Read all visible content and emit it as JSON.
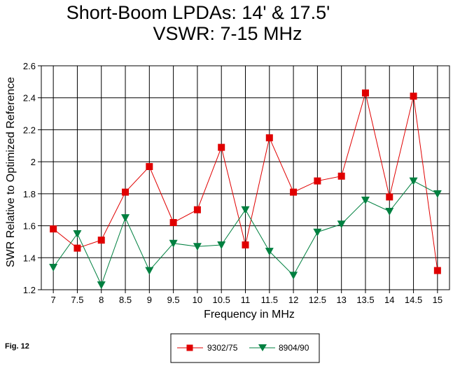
{
  "chart_data": {
    "type": "line",
    "title_line1": "Short-Boom LPDAs:  14' & 17.5'",
    "title_line2": "VSWR:  7-15 MHz",
    "xlabel": "Frequency in MHz",
    "ylabel": "SWR Relative to Optimized Reference",
    "x": [
      7,
      7.5,
      8,
      8.5,
      9,
      9.5,
      10,
      10.5,
      11,
      11.5,
      12,
      12.5,
      13,
      13.5,
      14,
      14.5,
      15
    ],
    "x_tick_labels": [
      "7",
      "7.5",
      "8",
      "8.5",
      "9",
      "9.5",
      "10",
      "10.5",
      "11",
      "11.5",
      "12",
      "12.5",
      "13",
      "13.5",
      "14",
      "14.5",
      "15"
    ],
    "ylim": [
      1.2,
      2.6
    ],
    "y_ticks": [
      1.2,
      1.4,
      1.6,
      1.8,
      2.0,
      2.2,
      2.4,
      2.6
    ],
    "y_tick_labels": [
      "1.2",
      "1.4",
      "1.6",
      "1.8",
      "2",
      "2.2",
      "2.4",
      "2.6"
    ],
    "grid": true,
    "legend_position": "bottom-center",
    "series": [
      {
        "name": "9302/75",
        "color": "#e00000",
        "marker": "square",
        "values": [
          1.58,
          1.46,
          1.51,
          1.81,
          1.97,
          1.62,
          1.7,
          2.09,
          1.48,
          2.15,
          1.81,
          1.88,
          1.91,
          2.43,
          1.78,
          2.41,
          1.32
        ]
      },
      {
        "name": "8904/90",
        "color": "#008040",
        "marker": "triangle-down",
        "values": [
          1.34,
          1.55,
          1.23,
          1.65,
          1.32,
          1.49,
          1.47,
          1.48,
          1.7,
          1.44,
          1.29,
          1.56,
          1.61,
          1.76,
          1.69,
          1.88,
          1.8
        ]
      }
    ]
  },
  "figure_label": "Fig. 12"
}
